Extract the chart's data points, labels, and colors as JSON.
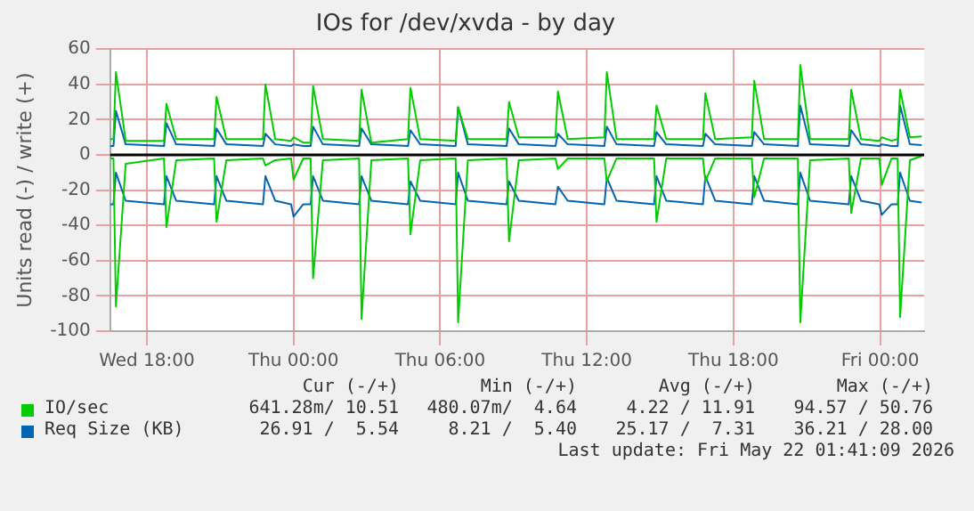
{
  "chart_data": {
    "type": "line",
    "title": "IOs for /dev/xvda - by day",
    "ylabel": "Units read (-) / write (+)",
    "x": [
      "2026-05-20T16:30",
      "2026-05-20T16:38",
      "2026-05-20T16:44",
      "2026-05-20T17:08",
      "2026-05-20T18:42",
      "2026-05-20T18:48",
      "2026-05-20T19:12",
      "2026-05-20T20:45",
      "2026-05-20T20:51",
      "2026-05-20T21:15",
      "2026-05-20T22:45",
      "2026-05-20T22:51",
      "2026-05-20T23:15",
      "2026-05-20T23:54",
      "2026-05-21T00:00",
      "2026-05-21T00:24",
      "2026-05-21T00:42",
      "2026-05-21T00:48",
      "2026-05-21T01:12",
      "2026-05-21T02:41",
      "2026-05-21T02:47",
      "2026-05-21T03:11",
      "2026-05-21T04:41",
      "2026-05-21T04:47",
      "2026-05-21T05:11",
      "2026-05-21T06:38",
      "2026-05-21T06:44",
      "2026-05-21T07:08",
      "2026-05-21T08:43",
      "2026-05-21T08:49",
      "2026-05-21T09:13",
      "2026-05-21T10:43",
      "2026-05-21T10:49",
      "2026-05-21T11:13",
      "2026-05-21T12:43",
      "2026-05-21T12:49",
      "2026-05-21T13:13",
      "2026-05-21T14:45",
      "2026-05-21T14:51",
      "2026-05-21T15:15",
      "2026-05-21T16:45",
      "2026-05-21T16:51",
      "2026-05-21T17:15",
      "2026-05-21T18:45",
      "2026-05-21T18:51",
      "2026-05-21T19:15",
      "2026-05-21T20:38",
      "2026-05-21T20:44",
      "2026-05-21T21:08",
      "2026-05-21T22:43",
      "2026-05-21T22:49",
      "2026-05-21T23:13",
      "2026-05-21T23:58",
      "2026-05-22T00:04",
      "2026-05-22T00:28",
      "2026-05-22T00:43",
      "2026-05-22T00:49",
      "2026-05-22T01:13",
      "2026-05-22T01:42"
    ],
    "series": [
      {
        "name": "IO/sec",
        "color": "#00cc00",
        "values": [
          9,
          9,
          47,
          8,
          8,
          29,
          9,
          9,
          33,
          9,
          9,
          40,
          9,
          8,
          10,
          7,
          7,
          39,
          9,
          8,
          37,
          7,
          9,
          38,
          9,
          8,
          27,
          9,
          9,
          30,
          10,
          10,
          36,
          9,
          10,
          47,
          9,
          9,
          28,
          9,
          9,
          35,
          9,
          10,
          42,
          9,
          9,
          51,
          9,
          9,
          37,
          9,
          8,
          10,
          8,
          9,
          37,
          10,
          10.5
        ]
      },
      {
        "color": "#00cc00",
        "values": [
          -2,
          -2,
          -86,
          -5,
          -2,
          -41,
          -3,
          -2,
          -38,
          -3,
          -2,
          -6,
          -3,
          -2,
          -14,
          -2,
          -2,
          -70,
          -3,
          -2,
          -93,
          -3,
          -2,
          -45,
          -3,
          -2,
          -95,
          -3,
          -2,
          -49,
          -3,
          -2,
          -8,
          -2,
          -2,
          -15,
          -2,
          -2,
          -38,
          -2,
          -2,
          -15,
          -2,
          -2,
          -24,
          -2,
          -2,
          -95,
          -3,
          -2,
          -33,
          -2,
          -2,
          -17,
          -2,
          -2,
          -92,
          -3,
          -0.6
        ]
      },
      {
        "name": "Req Size (KB)",
        "color": "#0066b3",
        "values": [
          5,
          5,
          25,
          6,
          5,
          18,
          6,
          5,
          15,
          6,
          5,
          12,
          6,
          5,
          6,
          5,
          5,
          16,
          6,
          5,
          15,
          6,
          5,
          14,
          6,
          5,
          27,
          6,
          5,
          15,
          6,
          5,
          12,
          6,
          5,
          16,
          6,
          5,
          13,
          6,
          5,
          12,
          6,
          5,
          13,
          6,
          5,
          28,
          6,
          5,
          14,
          6,
          5,
          6,
          5,
          5,
          28,
          6,
          5.5
        ]
      },
      {
        "color": "#0066b3",
        "values": [
          -28,
          -28,
          -10,
          -26,
          -28,
          -12,
          -26,
          -28,
          -12,
          -26,
          -28,
          -12,
          -26,
          -28,
          -35,
          -28,
          -28,
          -12,
          -26,
          -28,
          -12,
          -26,
          -28,
          -15,
          -26,
          -28,
          -10,
          -26,
          -28,
          -15,
          -26,
          -28,
          -18,
          -26,
          -28,
          -13,
          -26,
          -28,
          -12,
          -26,
          -28,
          -12,
          -26,
          -28,
          -12,
          -26,
          -28,
          -10,
          -26,
          -28,
          -12,
          -26,
          -28,
          -34,
          -28,
          -28,
          -10,
          -26,
          -27
        ]
      }
    ],
    "xlim": [
      "2026-05-20T16:30",
      "2026-05-22T01:48"
    ],
    "xticks": [
      {
        "value": "2026-05-20T18:00",
        "label": "Wed 18:00"
      },
      {
        "value": "2026-05-21T00:00",
        "label": "Thu 00:00"
      },
      {
        "value": "2026-05-21T06:00",
        "label": "Thu 06:00"
      },
      {
        "value": "2026-05-21T12:00",
        "label": "Thu 12:00"
      },
      {
        "value": "2026-05-21T18:00",
        "label": "Thu 18:00"
      },
      {
        "value": "2026-05-22T00:00",
        "label": "Fri 00:00"
      }
    ],
    "ylim": [
      -100,
      60
    ],
    "yticks": [
      -100,
      -80,
      -60,
      -40,
      -20,
      0,
      20,
      40,
      60
    ],
    "ref_lines": [
      {
        "axis": "y",
        "value": 0,
        "color": "#000000"
      }
    ],
    "grid": true,
    "legend": "bottom",
    "marker": "none",
    "line_style": "solid",
    "annotations": [
      "Cur (-/+)",
      "Min (-/+)",
      "Avg (-/+)",
      "Max (-/+)",
      "641.28m/ 10.51",
      "480.07m/  4.64",
      " 4.22 / 11.91",
      "94.57 / 50.76",
      "26.91 /  5.54",
      " 8.21 /  5.40",
      "25.17 /  7.31",
      "36.21 / 28.00",
      "Last update: Fri May 22 01:41:09 2026"
    ]
  }
}
